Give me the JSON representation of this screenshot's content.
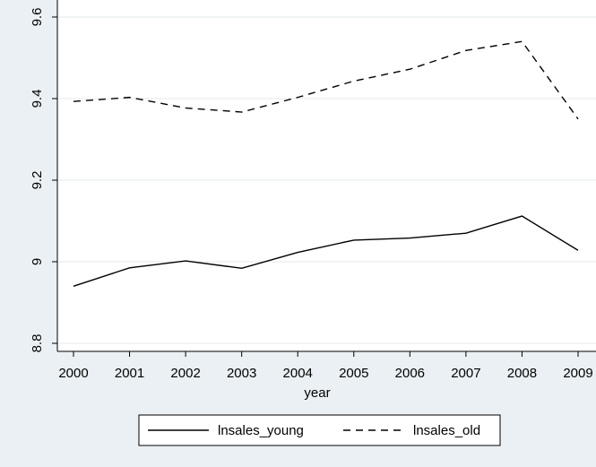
{
  "chart_data": {
    "type": "line",
    "x": [
      2000,
      2001,
      2002,
      2003,
      2004,
      2005,
      2006,
      2007,
      2008,
      2009
    ],
    "x_tick_labels": [
      "2000",
      "2001",
      "2002",
      "2003",
      "2004",
      "2005",
      "2006",
      "2007",
      "2008",
      "2009"
    ],
    "xlabel": "year",
    "ylabel": "",
    "ylim": [
      8.8,
      9.6
    ],
    "y_ticks": [
      8.8,
      9,
      9.2,
      9.4,
      9.6
    ],
    "y_tick_labels": [
      "8.8",
      "9",
      "9.2",
      "9.4",
      "9.6"
    ],
    "grid": true,
    "legend_position": "bottom",
    "series": [
      {
        "name": "lnsales_young",
        "line_style": "solid",
        "color": "#000000",
        "values": [
          8.94,
          8.985,
          9.002,
          8.984,
          9.023,
          9.053,
          9.058,
          9.07,
          9.112,
          9.028
        ]
      },
      {
        "name": "lnsales_old",
        "line_style": "dashed",
        "color": "#000000",
        "values": [
          9.393,
          9.403,
          9.377,
          9.367,
          9.403,
          9.443,
          9.472,
          9.518,
          9.54,
          9.35
        ]
      }
    ]
  }
}
